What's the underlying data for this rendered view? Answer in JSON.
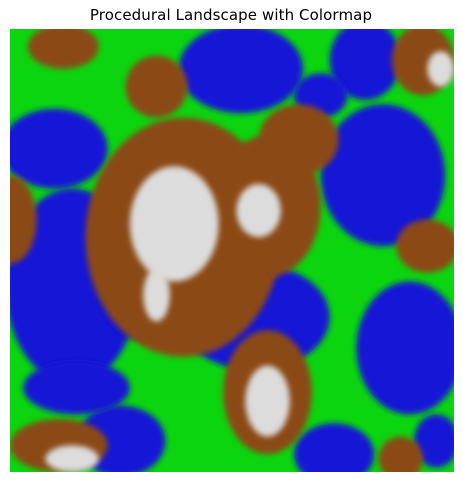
{
  "chart_data": {
    "type": "heatmap",
    "title": "Procedural Landscape with Colormap",
    "axes_visible": false,
    "grid": false,
    "colormap": [
      {
        "name": "water",
        "color": "#1818d6"
      },
      {
        "name": "grass",
        "color": "#0bd50f"
      },
      {
        "name": "mountain",
        "color": "#8b4a14"
      },
      {
        "name": "snow",
        "color": "#dcdcdc"
      }
    ],
    "regions": [
      {
        "class": "water",
        "cx": 0.1,
        "cy": 0.27,
        "rx": 0.12,
        "ry": 0.09
      },
      {
        "class": "water",
        "cx": 0.14,
        "cy": 0.58,
        "rx": 0.15,
        "ry": 0.22
      },
      {
        "class": "water",
        "cx": 0.25,
        "cy": 0.93,
        "rx": 0.1,
        "ry": 0.08
      },
      {
        "class": "water",
        "cx": 0.52,
        "cy": 0.09,
        "rx": 0.14,
        "ry": 0.1
      },
      {
        "class": "water",
        "cx": 0.8,
        "cy": 0.07,
        "rx": 0.08,
        "ry": 0.09
      },
      {
        "class": "water",
        "cx": 0.84,
        "cy": 0.33,
        "rx": 0.14,
        "ry": 0.16
      },
      {
        "class": "water",
        "cx": 0.55,
        "cy": 0.65,
        "rx": 0.17,
        "ry": 0.12
      },
      {
        "class": "water",
        "cx": 0.9,
        "cy": 0.72,
        "rx": 0.12,
        "ry": 0.15
      },
      {
        "class": "water",
        "cx": 0.73,
        "cy": 0.96,
        "rx": 0.09,
        "ry": 0.07
      },
      {
        "class": "water",
        "cx": 0.3,
        "cy": 0.58,
        "rx": 0.1,
        "ry": 0.12
      },
      {
        "class": "water",
        "cx": 0.15,
        "cy": 0.81,
        "rx": 0.12,
        "ry": 0.06
      },
      {
        "class": "water",
        "cx": 0.96,
        "cy": 0.93,
        "rx": 0.05,
        "ry": 0.06
      },
      {
        "class": "water",
        "cx": 0.7,
        "cy": 0.15,
        "rx": 0.06,
        "ry": 0.05
      },
      {
        "class": "mountain",
        "cx": 0.39,
        "cy": 0.47,
        "rx": 0.22,
        "ry": 0.27
      },
      {
        "class": "mountain",
        "cx": 0.58,
        "cy": 0.4,
        "rx": 0.12,
        "ry": 0.16
      },
      {
        "class": "mountain",
        "cx": 0.58,
        "cy": 0.82,
        "rx": 0.1,
        "ry": 0.14
      },
      {
        "class": "mountain",
        "cx": 0.11,
        "cy": 0.94,
        "rx": 0.11,
        "ry": 0.06
      },
      {
        "class": "mountain",
        "cx": 0.33,
        "cy": 0.13,
        "rx": 0.07,
        "ry": 0.07
      },
      {
        "class": "mountain",
        "cx": 0.12,
        "cy": 0.04,
        "rx": 0.08,
        "ry": 0.05
      },
      {
        "class": "mountain",
        "cx": 0.65,
        "cy": 0.25,
        "rx": 0.09,
        "ry": 0.08
      },
      {
        "class": "mountain",
        "cx": 0.93,
        "cy": 0.07,
        "rx": 0.07,
        "ry": 0.08
      },
      {
        "class": "mountain",
        "cx": 0.94,
        "cy": 0.49,
        "rx": 0.07,
        "ry": 0.06
      },
      {
        "class": "mountain",
        "cx": 0.0,
        "cy": 0.43,
        "rx": 0.06,
        "ry": 0.1
      },
      {
        "class": "mountain",
        "cx": 0.88,
        "cy": 0.97,
        "rx": 0.05,
        "ry": 0.05
      },
      {
        "class": "snow",
        "cx": 0.37,
        "cy": 0.44,
        "rx": 0.1,
        "ry": 0.13
      },
      {
        "class": "snow",
        "cx": 0.56,
        "cy": 0.41,
        "rx": 0.05,
        "ry": 0.06
      },
      {
        "class": "snow",
        "cx": 0.58,
        "cy": 0.84,
        "rx": 0.05,
        "ry": 0.08
      },
      {
        "class": "snow",
        "cx": 0.14,
        "cy": 0.97,
        "rx": 0.06,
        "ry": 0.03
      },
      {
        "class": "snow",
        "cx": 0.97,
        "cy": 0.09,
        "rx": 0.03,
        "ry": 0.04
      },
      {
        "class": "snow",
        "cx": 0.33,
        "cy": 0.6,
        "rx": 0.03,
        "ry": 0.06
      }
    ]
  }
}
